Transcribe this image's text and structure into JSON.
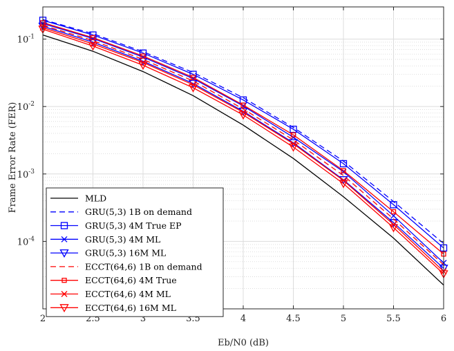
{
  "chart_data": {
    "type": "line",
    "xlabel": "Eb/N0 (dB)",
    "ylabel": "Frame Error Rate (FER)",
    "xlim": [
      2,
      6
    ],
    "ylim": [
      1e-05,
      0.3
    ],
    "yscale": "log",
    "grid": true,
    "minor_grid": true,
    "legend_position": "bottom-left",
    "x": [
      2,
      2.5,
      3,
      3.5,
      4,
      4.5,
      5,
      5.5,
      6
    ],
    "x_ticks": [
      "2",
      "2.5",
      "3",
      "3.5",
      "4",
      "4.5",
      "5",
      "5.5",
      "6"
    ],
    "y_ticks": [
      {
        "value": 0.1,
        "mantissa": "10",
        "exp": "-1"
      },
      {
        "value": 0.01,
        "mantissa": "10",
        "exp": "-2"
      },
      {
        "value": 0.001,
        "mantissa": "10",
        "exp": "-3"
      },
      {
        "value": 0.0001,
        "mantissa": "10",
        "exp": "-4"
      }
    ],
    "series": [
      {
        "name": "MLD",
        "color": "#000000",
        "dash": "solid",
        "marker": "none",
        "values": [
          0.115,
          0.066,
          0.033,
          0.0145,
          0.0053,
          0.0017,
          0.00046,
          0.000112,
          2.25e-05
        ]
      },
      {
        "name": "GRU(5,3) 1B on demand",
        "color": "#0000ff",
        "dash": "dashed",
        "marker": "none",
        "values": [
          0.195,
          0.12,
          0.065,
          0.032,
          0.0135,
          0.0049,
          0.00155,
          0.00039,
          9.3e-05
        ]
      },
      {
        "name": "GRU(5,3) 4M True EP",
        "color": "#0000ff",
        "dash": "solid",
        "marker": "square",
        "values": [
          0.19,
          0.115,
          0.062,
          0.03,
          0.0125,
          0.0046,
          0.00142,
          0.00035,
          8e-05
        ]
      },
      {
        "name": "GRU(5,3) 4M ML",
        "color": "#0000ff",
        "dash": "solid",
        "marker": "x",
        "values": [
          0.17,
          0.102,
          0.054,
          0.026,
          0.0102,
          0.0035,
          0.00108,
          0.00024,
          4.8e-05
        ]
      },
      {
        "name": "GRU(5,3) 16M ML",
        "color": "#0000ff",
        "dash": "solid",
        "marker": "triangle-down",
        "values": [
          0.155,
          0.09,
          0.047,
          0.022,
          0.0085,
          0.0029,
          0.00082,
          0.00019,
          4e-05
        ]
      },
      {
        "name": "ECCT(64,6) 1B on demand",
        "color": "#ff0000",
        "dash": "dashed",
        "marker": "none",
        "values": [
          0.16,
          0.095,
          0.05,
          0.024,
          0.0092,
          0.0032,
          0.00095,
          0.000215,
          4.5e-05
        ]
      },
      {
        "name": "ECCT(64,6) 4M True",
        "color": "#ff0000",
        "dash": "solid",
        "marker": "small-square",
        "values": [
          0.175,
          0.105,
          0.056,
          0.027,
          0.0105,
          0.0038,
          0.00112,
          0.000275,
          6.5e-05
        ]
      },
      {
        "name": "ECCT(64,6) 4M ML",
        "color": "#ff0000",
        "dash": "solid",
        "marker": "x",
        "values": [
          0.148,
          0.085,
          0.045,
          0.021,
          0.0082,
          0.0028,
          0.0008,
          0.000178,
          3.6e-05
        ]
      },
      {
        "name": "ECCT(64,6) 16M ML",
        "color": "#ff0000",
        "dash": "solid",
        "marker": "triangle-down",
        "values": [
          0.14,
          0.079,
          0.041,
          0.019,
          0.0075,
          0.0025,
          0.00072,
          0.00016,
          3.3e-05
        ]
      }
    ]
  }
}
